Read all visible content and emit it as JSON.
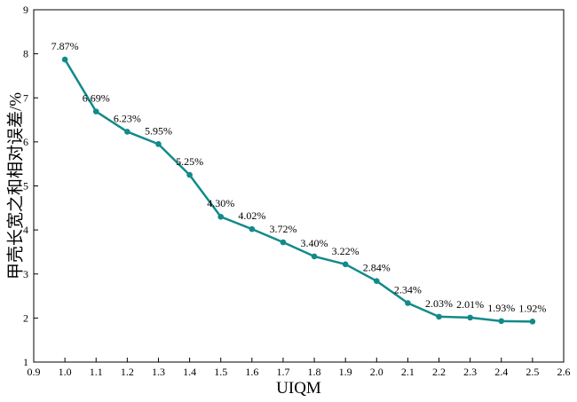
{
  "chart_data": {
    "type": "line",
    "xlabel": "UIQM",
    "ylabel": "甲壳长宽之和相对误差/%",
    "xlim": [
      0.9,
      2.6
    ],
    "ylim": [
      1,
      9
    ],
    "xticks": [
      "0.9",
      "1.0",
      "1.1",
      "1.2",
      "1.3",
      "1.4",
      "1.5",
      "1.6",
      "1.7",
      "1.8",
      "1.9",
      "2.0",
      "2.1",
      "2.2",
      "2.3",
      "2.4",
      "2.5",
      "2.6"
    ],
    "yticks": [
      "1",
      "2",
      "3",
      "4",
      "5",
      "6",
      "7",
      "8",
      "9"
    ],
    "grid": false,
    "series": [
      {
        "color": "#128a8a",
        "x": [
          1.0,
          1.1,
          1.2,
          1.3,
          1.4,
          1.5,
          1.6,
          1.7,
          1.8,
          1.9,
          2.0,
          2.1,
          2.2,
          2.3,
          2.4,
          2.5
        ],
        "y": [
          7.87,
          6.69,
          6.23,
          5.95,
          5.25,
          4.3,
          4.02,
          3.72,
          3.4,
          3.22,
          2.84,
          2.34,
          2.03,
          2.01,
          1.93,
          1.92
        ],
        "labels": [
          "7.87%",
          "6.69%",
          "6.23%",
          "5.95%",
          "5.25%",
          "4.30%",
          "4.02%",
          "3.72%",
          "3.40%",
          "3.22%",
          "2.84%",
          "2.34%",
          "2.03%",
          "2.01%",
          "1.93%",
          "1.92%"
        ]
      }
    ]
  }
}
